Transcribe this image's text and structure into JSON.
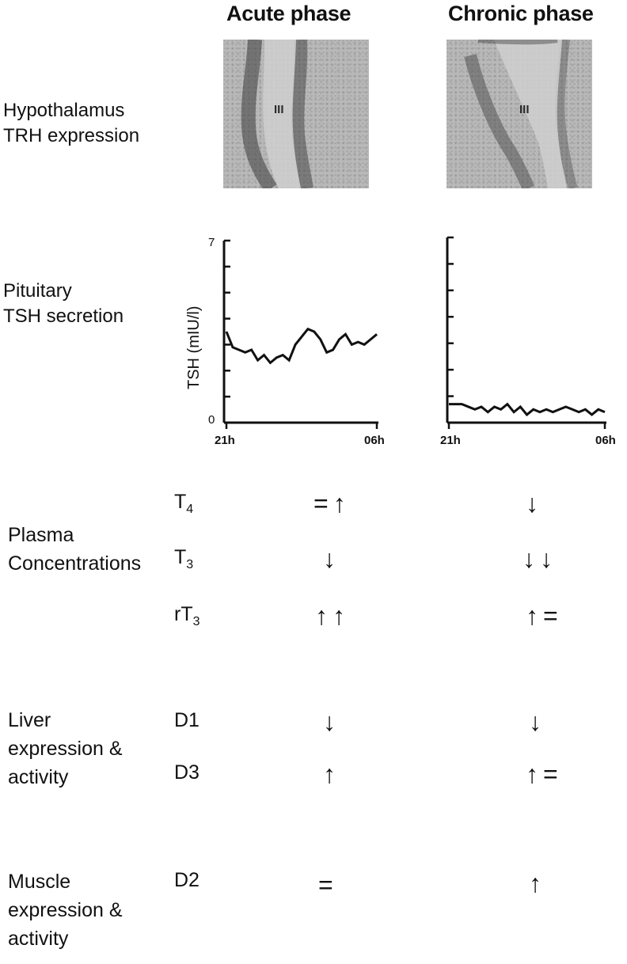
{
  "columns": {
    "acute": "Acute phase",
    "chronic": "Chronic phase"
  },
  "rows": {
    "hypothalamus": [
      "Hypothalamus",
      "TRH expression"
    ],
    "pituitary": [
      "Pituitary",
      "TSH secretion"
    ],
    "plasma": [
      "Plasma",
      "Concentrations"
    ],
    "liver": [
      "Liver",
      "expression &",
      "activity"
    ],
    "muscle": [
      "Muscle",
      "expression &",
      "activity"
    ]
  },
  "micrographs": {
    "ventricle_label": "III"
  },
  "plasma_items": [
    {
      "base": "T",
      "sub": "4",
      "acute": "=↑",
      "chronic": "↓"
    },
    {
      "base": "T",
      "sub": "3",
      "acute": "↓",
      "chronic": "↓↓"
    },
    {
      "base": "rT",
      "sub": "3",
      "acute": "↑↑",
      "chronic": "↑="
    }
  ],
  "liver_items": [
    {
      "label": "D1",
      "acute": "↓",
      "chronic": "↓"
    },
    {
      "label": "D3",
      "acute": "↑",
      "chronic": "↑="
    }
  ],
  "muscle_items": [
    {
      "label": "D2",
      "acute": "=",
      "chronic": "↑"
    }
  ],
  "chart_data": [
    {
      "type": "line",
      "panel": "acute",
      "ylabel": "TSH (mIU/l)",
      "ylim": [
        0,
        7
      ],
      "y_tick_labels": [
        "0",
        "7"
      ],
      "x_tick_labels": [
        "21h",
        "06h"
      ],
      "x": [
        0,
        1,
        2,
        3,
        4,
        5,
        6,
        7,
        8,
        9,
        10,
        11,
        12,
        13,
        14,
        15,
        16,
        17,
        18,
        19,
        20,
        21,
        22,
        23,
        24
      ],
      "values": [
        3.5,
        2.9,
        2.8,
        2.7,
        2.8,
        2.4,
        2.6,
        2.3,
        2.5,
        2.6,
        2.4,
        3.0,
        3.3,
        3.6,
        3.5,
        3.2,
        2.7,
        2.8,
        3.2,
        3.4,
        3.0,
        3.1,
        3.0,
        3.2,
        3.4
      ]
    },
    {
      "type": "line",
      "panel": "chronic",
      "ylabel": "",
      "ylim": [
        0,
        7
      ],
      "x_tick_labels": [
        "21h",
        "06h"
      ],
      "x": [
        0,
        1,
        2,
        3,
        4,
        5,
        6,
        7,
        8,
        9,
        10,
        11,
        12,
        13,
        14,
        15,
        16,
        17,
        18,
        19,
        20,
        21,
        22,
        23,
        24
      ],
      "values": [
        0.7,
        0.7,
        0.7,
        0.6,
        0.5,
        0.6,
        0.4,
        0.6,
        0.5,
        0.7,
        0.4,
        0.6,
        0.3,
        0.5,
        0.4,
        0.5,
        0.4,
        0.5,
        0.6,
        0.5,
        0.4,
        0.5,
        0.3,
        0.5,
        0.4
      ]
    }
  ]
}
